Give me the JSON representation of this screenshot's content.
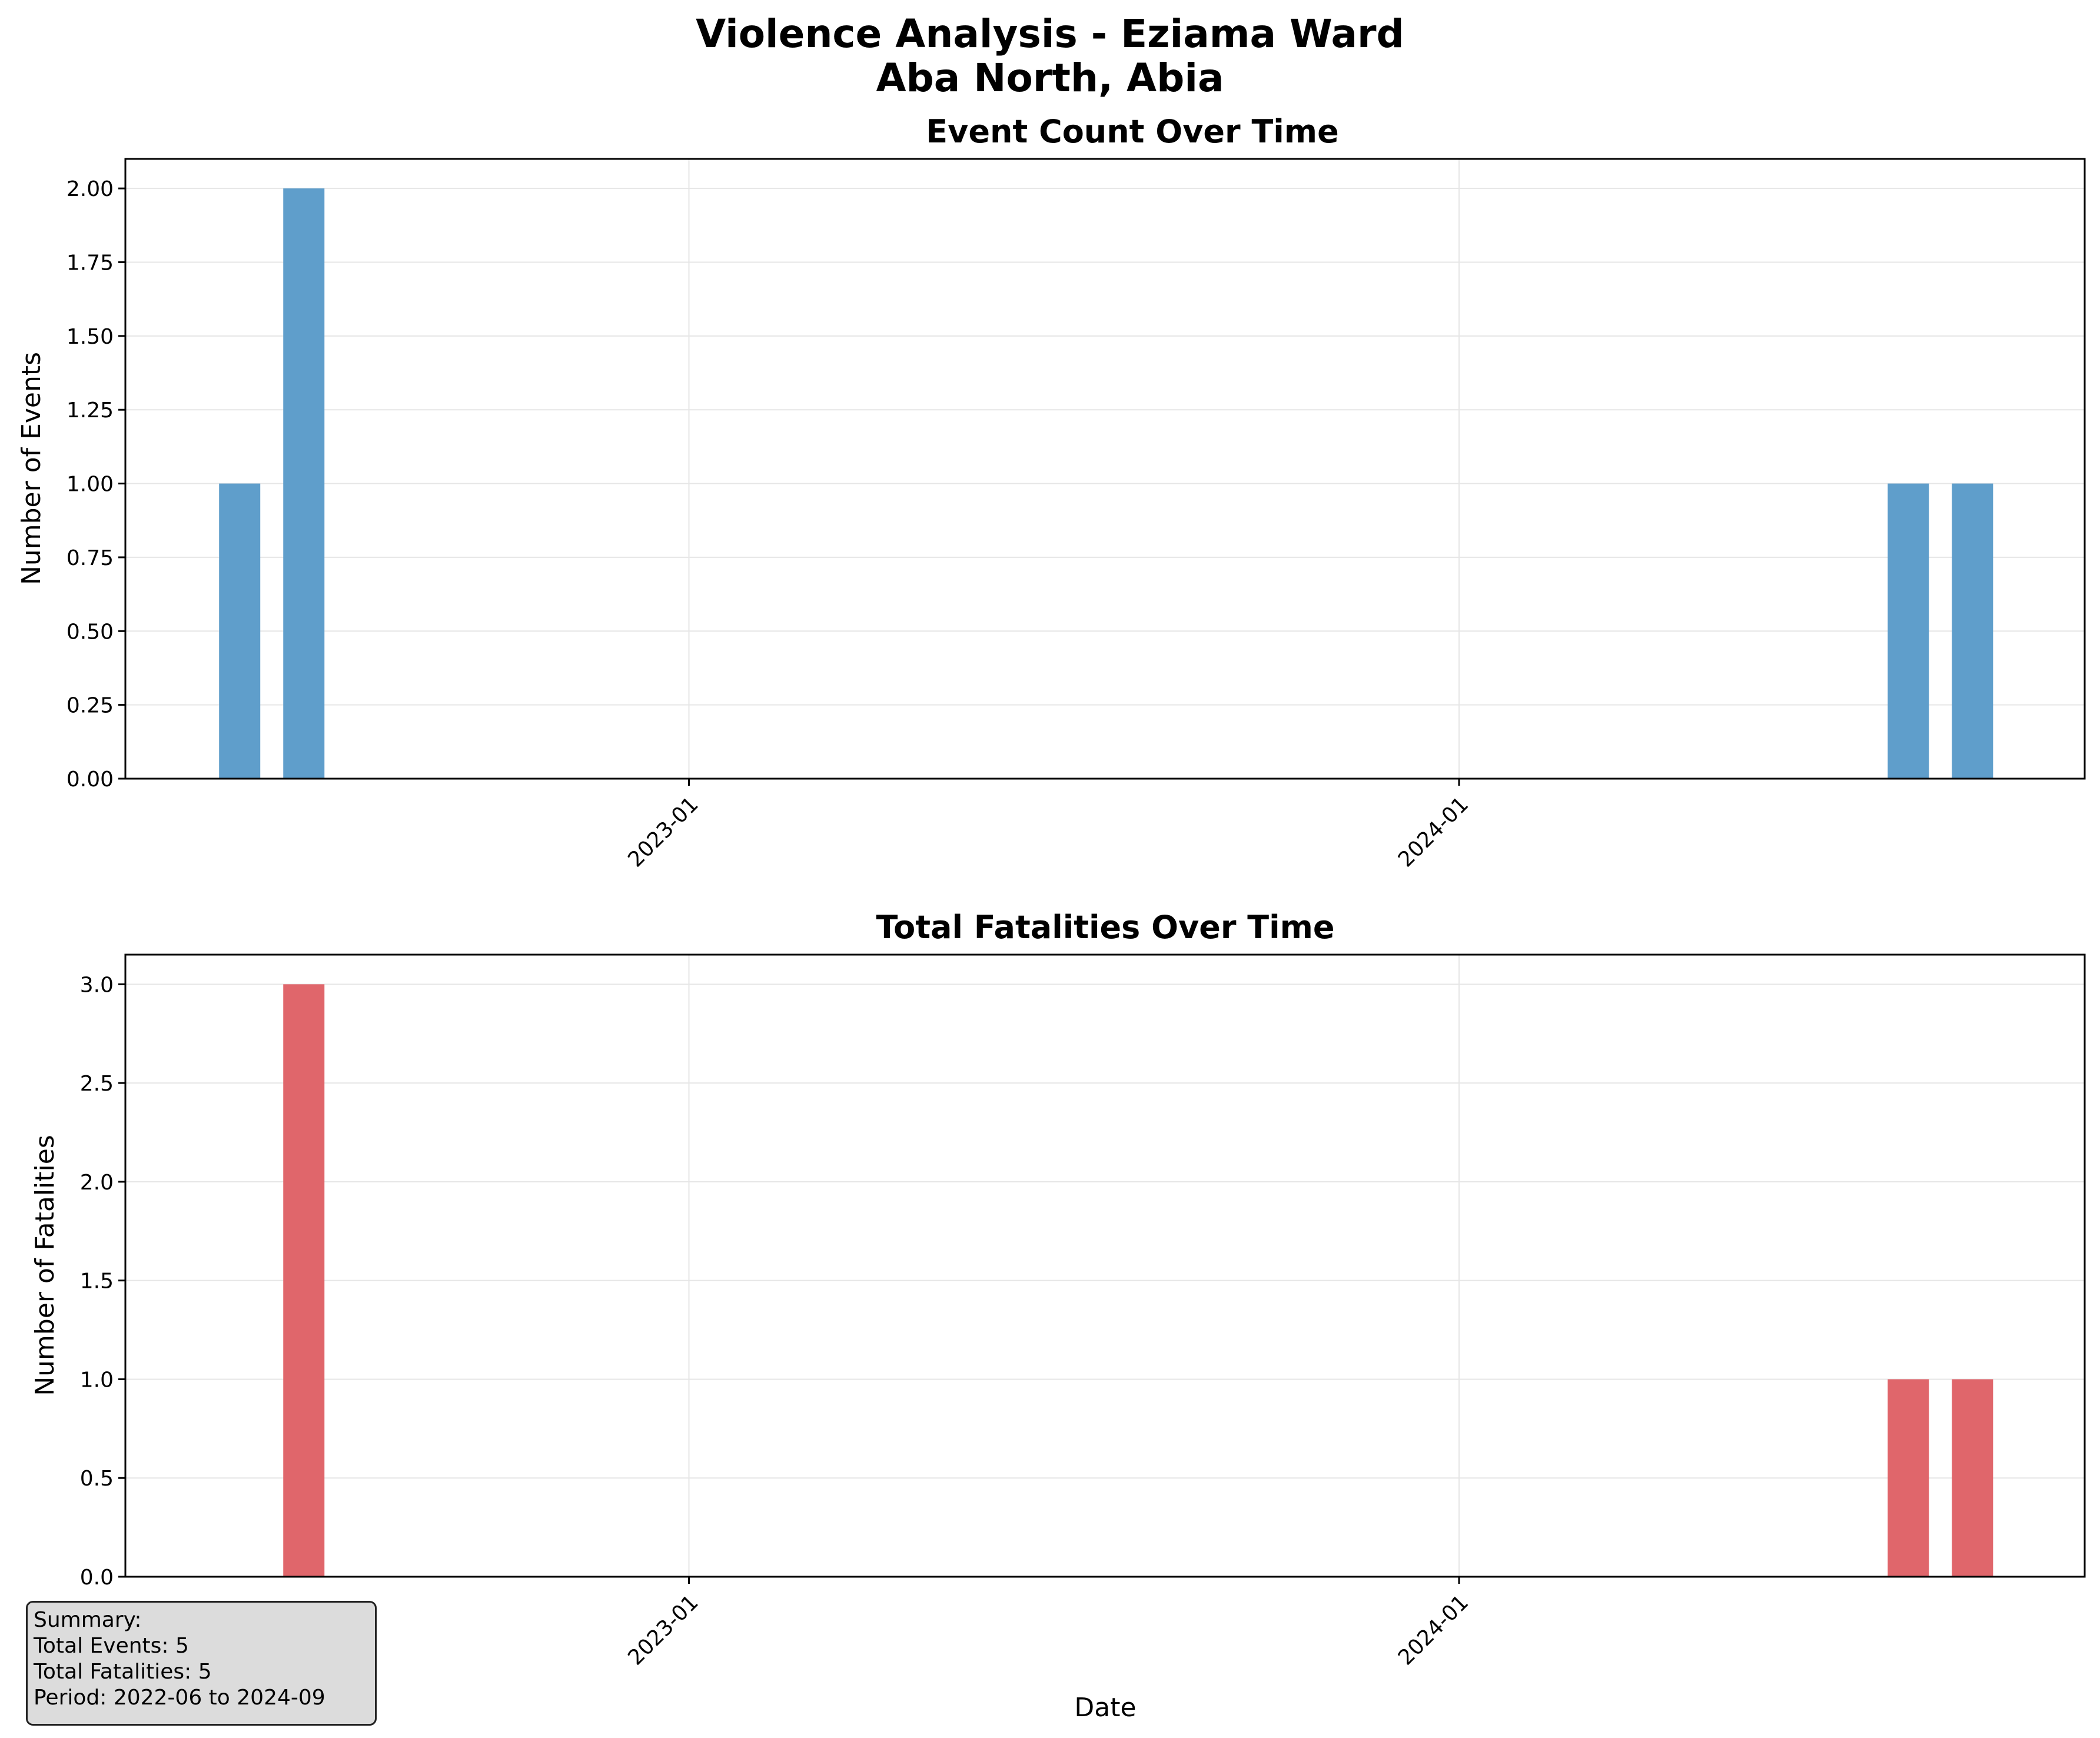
{
  "title_line1": "Violence Analysis - Eziama Ward",
  "title_line2": "Aba North, Abia",
  "colors": {
    "events_bar": "#5f9ecb",
    "fatalities_bar": "#e0666b",
    "grid": "#e6e6e6",
    "summary_bg": "#dcdcdc"
  },
  "chart_data": [
    {
      "type": "bar",
      "title": "Event Count Over Time",
      "xlabel": "",
      "ylabel": "Number of Events",
      "x_ticks": [
        "2023-01",
        "2024-01"
      ],
      "y_ticks": [
        "0.00",
        "0.25",
        "0.50",
        "0.75",
        "1.00",
        "1.25",
        "1.50",
        "1.75",
        "2.00"
      ],
      "ylim": [
        0,
        2.1
      ],
      "grid": true,
      "series": [
        {
          "x": [
            "2022-06",
            "2022-07",
            "2024-08",
            "2024-09"
          ],
          "values": [
            1,
            2,
            1,
            1
          ]
        }
      ]
    },
    {
      "type": "bar",
      "title": "Total Fatalities Over Time",
      "xlabel": "Date",
      "ylabel": "Number of Fatalities",
      "x_ticks": [
        "2023-01",
        "2024-01"
      ],
      "y_ticks": [
        "0.0",
        "0.5",
        "1.0",
        "1.5",
        "2.0",
        "2.5",
        "3.0"
      ],
      "ylim": [
        0,
        3.15
      ],
      "grid": true,
      "series": [
        {
          "x": [
            "2022-06",
            "2022-07",
            "2024-08",
            "2024-09"
          ],
          "values": [
            0,
            3,
            1,
            1
          ]
        }
      ]
    }
  ],
  "summary": {
    "heading": "Summary:",
    "total_events": "Total Events: 5",
    "total_fatalities": "Total Fatalities: 5",
    "period": "Period: 2022-06 to 2024-09"
  }
}
